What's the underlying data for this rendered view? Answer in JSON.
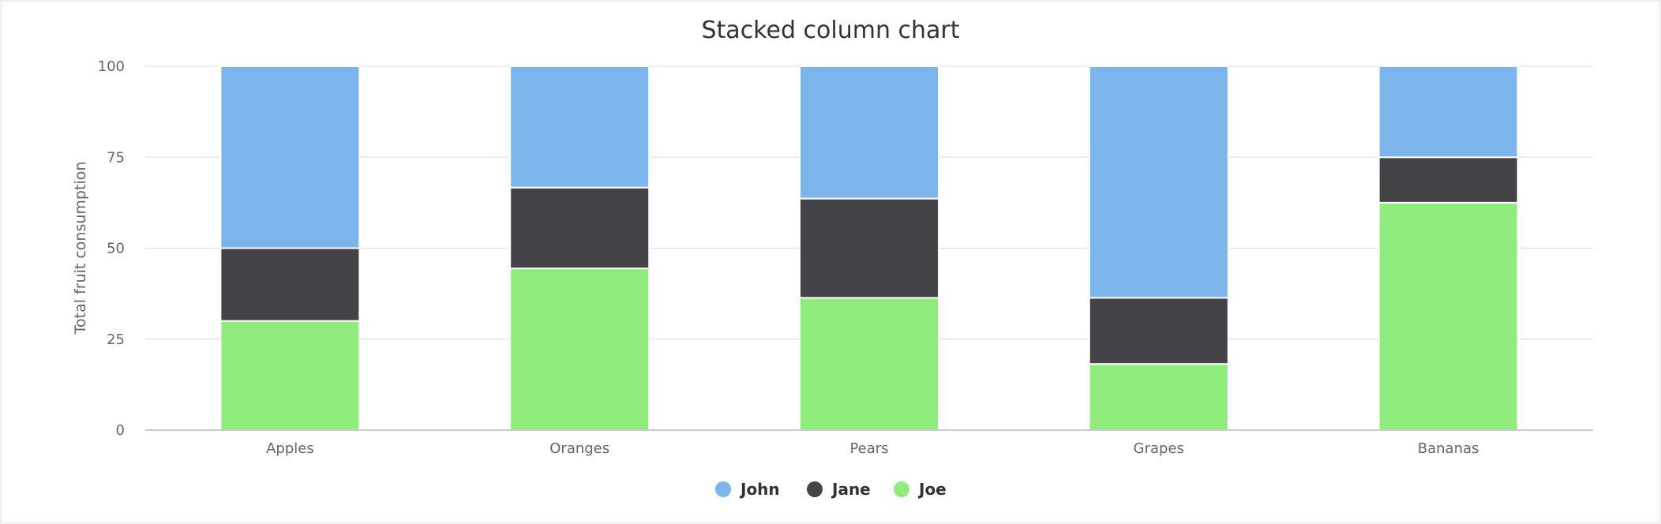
{
  "chart_data": {
    "type": "bar",
    "stacked": true,
    "stacking": "percent",
    "title": "Stacked column chart",
    "xlabel": "",
    "ylabel": "Total fruit consumption",
    "ylim": [
      0,
      100
    ],
    "yticks": [
      "0",
      "25",
      "50",
      "75",
      "100"
    ],
    "categories": [
      "Apples",
      "Oranges",
      "Pears",
      "Grapes",
      "Bananas"
    ],
    "series": [
      {
        "name": "John",
        "color": "#7cb5ec",
        "values": [
          5,
          3,
          4,
          7,
          2
        ]
      },
      {
        "name": "Jane",
        "color": "#434348",
        "values": [
          2,
          2,
          3,
          2,
          1
        ]
      },
      {
        "name": "Joe",
        "color": "#90ed7d",
        "values": [
          3,
          4,
          4,
          2,
          5
        ]
      }
    ],
    "grid": true,
    "legend": "bottom-center"
  }
}
